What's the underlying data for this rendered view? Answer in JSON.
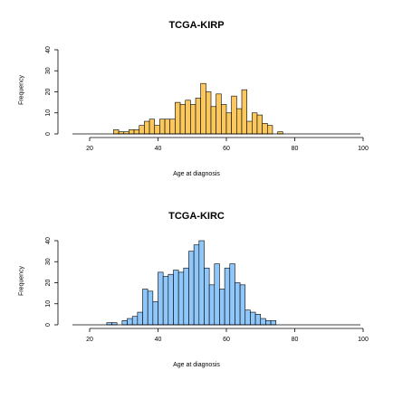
{
  "chart_data": [
    {
      "type": "histogram",
      "title": "TCGA-KIRP",
      "xlabel": "Age at diagnosis",
      "ylabel": "Frequency",
      "xlim": [
        10,
        100
      ],
      "ylim": [
        0,
        40
      ],
      "xticks": [
        20,
        40,
        60,
        80,
        100
      ],
      "yticks": [
        0,
        10,
        20,
        30,
        40
      ],
      "bin_width": 1.5,
      "bins": [
        {
          "x0": 27,
          "count": 2
        },
        {
          "x0": 28.5,
          "count": 1
        },
        {
          "x0": 30,
          "count": 1
        },
        {
          "x0": 31.5,
          "count": 2
        },
        {
          "x0": 33,
          "count": 2
        },
        {
          "x0": 34.5,
          "count": 4
        },
        {
          "x0": 36,
          "count": 6
        },
        {
          "x0": 37.5,
          "count": 7
        },
        {
          "x0": 39,
          "count": 4
        },
        {
          "x0": 40.5,
          "count": 7
        },
        {
          "x0": 42,
          "count": 7
        },
        {
          "x0": 43.5,
          "count": 7
        },
        {
          "x0": 45,
          "count": 15
        },
        {
          "x0": 46.5,
          "count": 14
        },
        {
          "x0": 48,
          "count": 16
        },
        {
          "x0": 49.5,
          "count": 14
        },
        {
          "x0": 51,
          "count": 17
        },
        {
          "x0": 52.5,
          "count": 24
        },
        {
          "x0": 54,
          "count": 20
        },
        {
          "x0": 55.5,
          "count": 13
        },
        {
          "x0": 57,
          "count": 19
        },
        {
          "x0": 58.5,
          "count": 14
        },
        {
          "x0": 60,
          "count": 10
        },
        {
          "x0": 61.5,
          "count": 18
        },
        {
          "x0": 63,
          "count": 12
        },
        {
          "x0": 64.5,
          "count": 21
        },
        {
          "x0": 66,
          "count": 6
        },
        {
          "x0": 67.5,
          "count": 10
        },
        {
          "x0": 69,
          "count": 9
        },
        {
          "x0": 70.5,
          "count": 5
        },
        {
          "x0": 72,
          "count": 4
        },
        {
          "x0": 75,
          "count": 1
        }
      ],
      "fill": "#FBC85D",
      "stroke": "#000000"
    },
    {
      "type": "histogram",
      "title": "TCGA-KIRC",
      "xlabel": "Age at diagnosis",
      "ylabel": "Frequency",
      "xlim": [
        10,
        100
      ],
      "ylim": [
        0,
        40
      ],
      "xticks": [
        20,
        40,
        60,
        80,
        100
      ],
      "yticks": [
        0,
        10,
        20,
        30,
        40
      ],
      "bin_width": 1.5,
      "bins": [
        {
          "x0": 25,
          "count": 1
        },
        {
          "x0": 26.5,
          "count": 1
        },
        {
          "x0": 29.5,
          "count": 2
        },
        {
          "x0": 31,
          "count": 3
        },
        {
          "x0": 32.5,
          "count": 4
        },
        {
          "x0": 34,
          "count": 6
        },
        {
          "x0": 35.5,
          "count": 17
        },
        {
          "x0": 37,
          "count": 16
        },
        {
          "x0": 38.5,
          "count": 11
        },
        {
          "x0": 40,
          "count": 25
        },
        {
          "x0": 41.5,
          "count": 23
        },
        {
          "x0": 43,
          "count": 24
        },
        {
          "x0": 44.5,
          "count": 26
        },
        {
          "x0": 46,
          "count": 25
        },
        {
          "x0": 47.5,
          "count": 27
        },
        {
          "x0": 49,
          "count": 35
        },
        {
          "x0": 50.5,
          "count": 38
        },
        {
          "x0": 52,
          "count": 40
        },
        {
          "x0": 53.5,
          "count": 27
        },
        {
          "x0": 55,
          "count": 19
        },
        {
          "x0": 56.5,
          "count": 29
        },
        {
          "x0": 58,
          "count": 17
        },
        {
          "x0": 59.5,
          "count": 27
        },
        {
          "x0": 61,
          "count": 29
        },
        {
          "x0": 62.5,
          "count": 20
        },
        {
          "x0": 64,
          "count": 19
        },
        {
          "x0": 65.5,
          "count": 7
        },
        {
          "x0": 67,
          "count": 6
        },
        {
          "x0": 68.5,
          "count": 5
        },
        {
          "x0": 70,
          "count": 3
        },
        {
          "x0": 71.5,
          "count": 2
        },
        {
          "x0": 73,
          "count": 2
        }
      ],
      "fill": "#8FC7FB",
      "stroke": "#000000"
    }
  ]
}
